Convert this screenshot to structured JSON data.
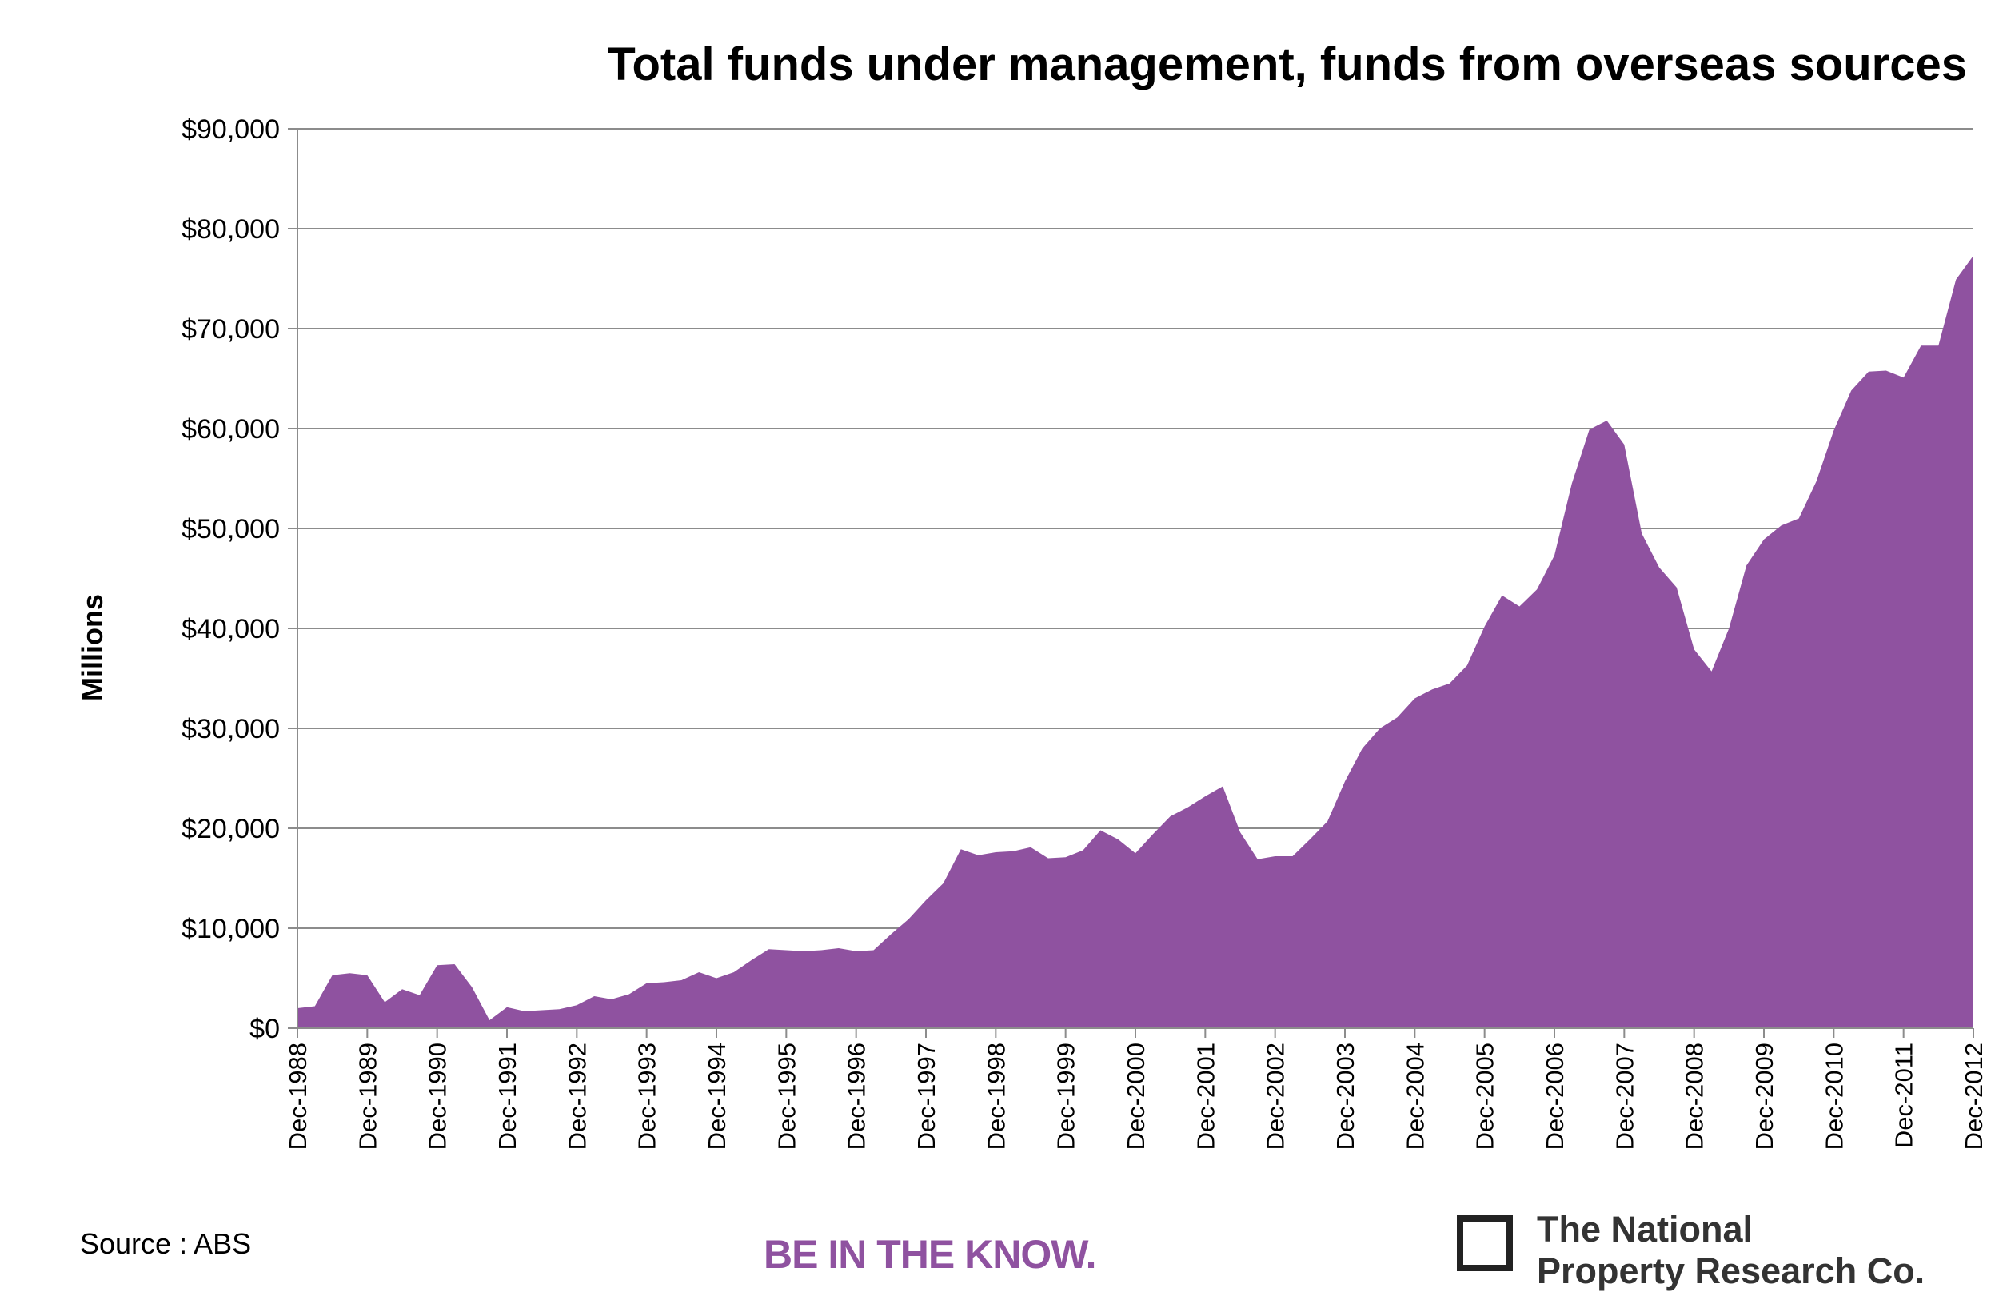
{
  "colors": {
    "area": "#8f52a0",
    "grid": "#8c8c8c",
    "tagline": "#8f52a0"
  },
  "chart_data": {
    "type": "area",
    "title": "Total funds under management, funds from overseas sources",
    "xlabel": "",
    "ylabel": "Millions",
    "ylim": [
      0,
      90000
    ],
    "y_ticks": [
      "$0",
      "$10,000",
      "$20,000",
      "$30,000",
      "$40,000",
      "$50,000",
      "$60,000",
      "$70,000",
      "$80,000",
      "$90,000"
    ],
    "x_ticks": [
      "Dec-1988",
      "Dec-1989",
      "Dec-1990",
      "Dec-1991",
      "Dec-1992",
      "Dec-1993",
      "Dec-1994",
      "Dec-1995",
      "Dec-1996",
      "Dec-1997",
      "Dec-1998",
      "Dec-1999",
      "Dec-2000",
      "Dec-2001",
      "Dec-2002",
      "Dec-2003",
      "Dec-2004",
      "Dec-2005",
      "Dec-2006",
      "Dec-2007",
      "Dec-2008",
      "Dec-2009",
      "Dec-2010",
      "Dec-2011",
      "Dec-2012"
    ],
    "grid": true,
    "legend": "none",
    "frequency": "quarterly",
    "start": "Dec-1988",
    "series": [
      {
        "values": [
          2000,
          2200,
          5300,
          5500,
          5300,
          2600,
          3900,
          3300,
          6300,
          6400,
          4100,
          800,
          2100,
          1700,
          1800,
          1900,
          2300,
          3200,
          2900,
          3400,
          4500,
          4600,
          4800,
          5600,
          5000,
          5600,
          6800,
          7900,
          7800,
          7700,
          7800,
          8000,
          7700,
          7800,
          9400,
          10900,
          12800,
          14500,
          17900,
          17300,
          17600,
          17700,
          18100,
          17000,
          17100,
          17800,
          19800,
          18900,
          17500,
          19400,
          21200,
          22100,
          23200,
          24200,
          19600,
          16900,
          17200,
          17200,
          18900,
          20700,
          24700,
          28000,
          30000,
          31100,
          33000,
          33900,
          34500,
          36300,
          40200,
          43300,
          42200,
          43900,
          47300,
          54500,
          59900,
          60800,
          58400,
          49500,
          46100,
          44100,
          37900,
          35700,
          40000,
          46300,
          48900,
          50300,
          51000,
          54700,
          59800,
          63800,
          65700,
          65800,
          65100,
          68300,
          68300,
          74900,
          77300
        ]
      }
    ]
  },
  "footer": {
    "source": "Source : ABS",
    "tagline": "BE IN THE KNOW.",
    "logo_line1": "The National",
    "logo_line2": "Property Research Co."
  }
}
